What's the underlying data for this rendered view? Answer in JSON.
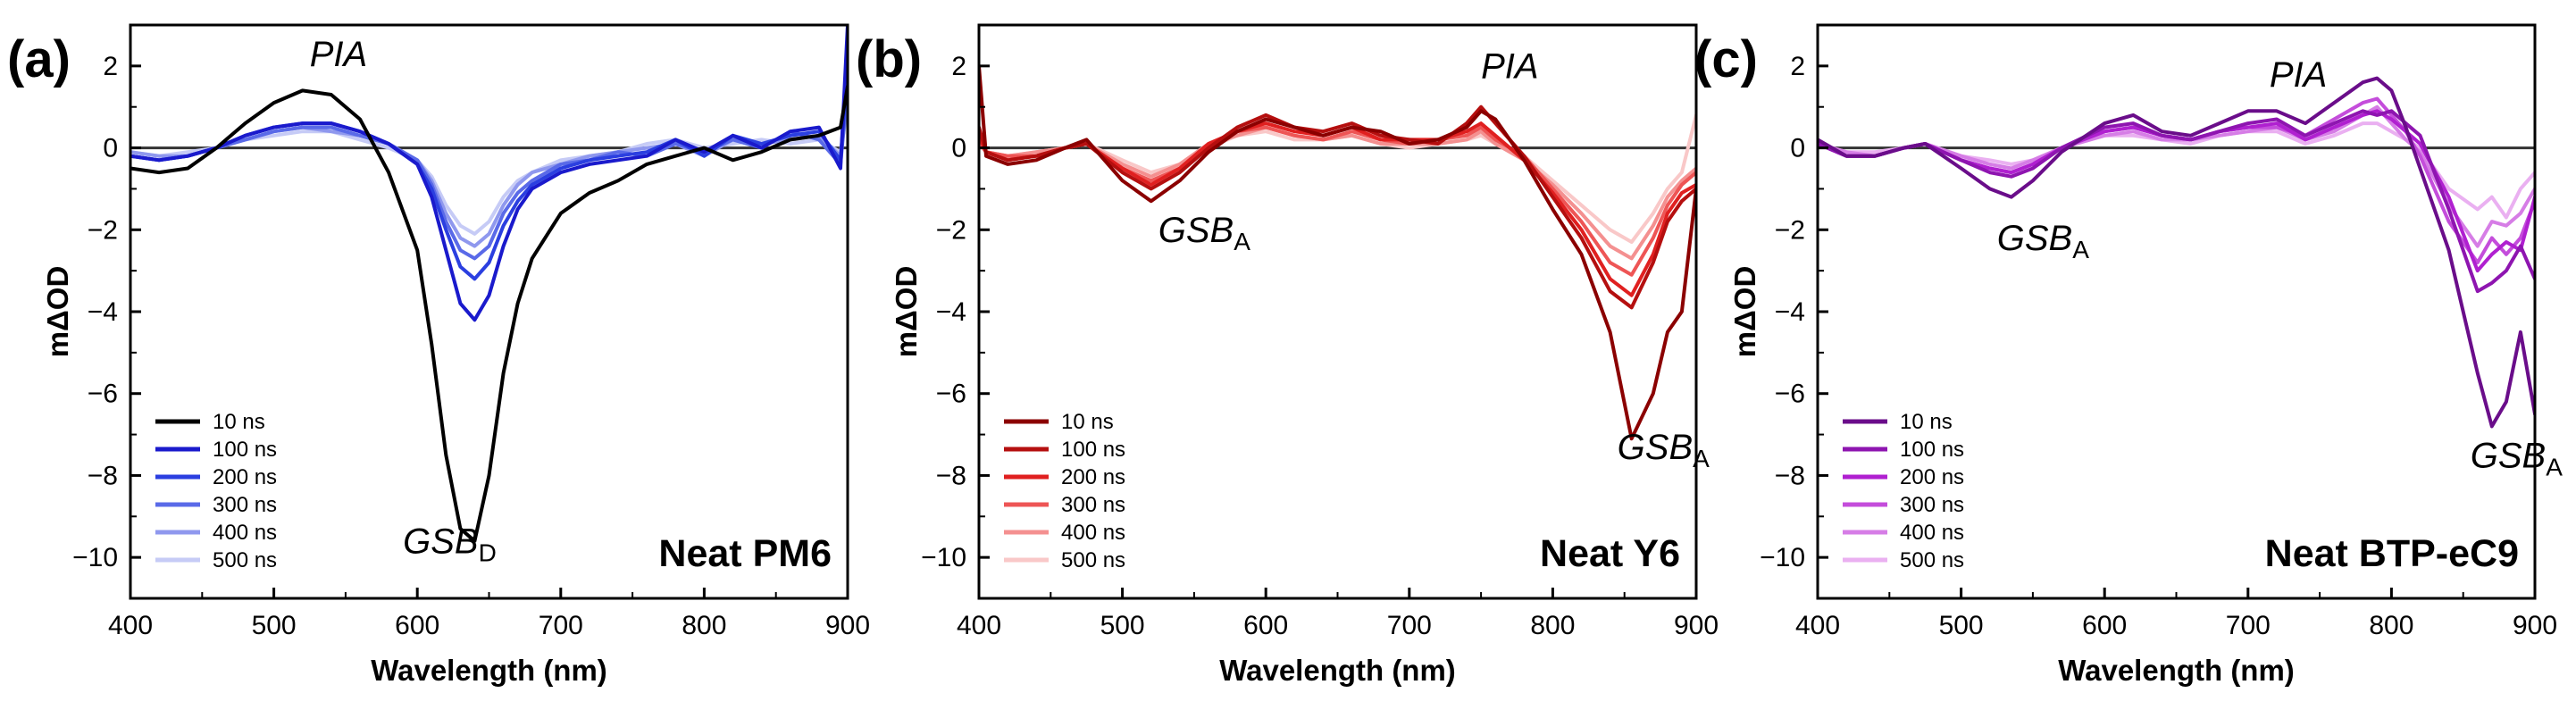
{
  "figure": {
    "background": "#ffffff"
  },
  "chart_data": [
    {
      "type": "line",
      "panel_label": "(a)",
      "title": "Neat PM6",
      "xlabel": "Wavelength (nm)",
      "ylabel": "mΔOD",
      "xlim": [
        400,
        900
      ],
      "ylim": [
        -11,
        3
      ],
      "xticks": [
        400,
        500,
        600,
        700,
        800,
        900
      ],
      "yticks": [
        2,
        0,
        -2,
        -4,
        -6,
        -8,
        -10
      ],
      "grid": false,
      "legend_position": "lower-left",
      "annotations": [
        {
          "base": "PIA",
          "sub": "",
          "x": 525,
          "y": 2.0
        },
        {
          "base": "GSB",
          "sub": "D",
          "x": 590,
          "y": -9.9
        }
      ],
      "x": [
        400,
        420,
        440,
        460,
        480,
        500,
        520,
        540,
        560,
        580,
        600,
        610,
        620,
        630,
        640,
        650,
        660,
        670,
        680,
        700,
        720,
        740,
        760,
        780,
        800,
        820,
        840,
        860,
        880,
        895,
        900
      ],
      "series": [
        {
          "name": "10 ns",
          "color": "#000000",
          "values": [
            -0.5,
            -0.6,
            -0.5,
            0.0,
            0.6,
            1.1,
            1.4,
            1.3,
            0.7,
            -0.6,
            -2.5,
            -4.8,
            -7.5,
            -9.3,
            -9.6,
            -8.0,
            -5.5,
            -3.8,
            -2.7,
            -1.6,
            -1.1,
            -0.8,
            -0.4,
            -0.2,
            0.0,
            -0.3,
            -0.1,
            0.2,
            0.3,
            0.5,
            1.5
          ]
        },
        {
          "name": "100 ns",
          "color": "#1a1acc",
          "values": [
            -0.2,
            -0.3,
            -0.2,
            0.0,
            0.3,
            0.5,
            0.6,
            0.6,
            0.4,
            0.1,
            -0.4,
            -1.2,
            -2.5,
            -3.8,
            -4.2,
            -3.6,
            -2.4,
            -1.5,
            -1.0,
            -0.6,
            -0.4,
            -0.3,
            -0.2,
            0.2,
            -0.1,
            0.3,
            0.0,
            0.4,
            0.5,
            -0.5,
            3.0
          ]
        },
        {
          "name": "200 ns",
          "color": "#2b3fe0",
          "values": [
            -0.2,
            -0.3,
            -0.2,
            0.0,
            0.3,
            0.5,
            0.6,
            0.6,
            0.4,
            0.1,
            -0.4,
            -1.0,
            -2.0,
            -2.9,
            -3.2,
            -2.8,
            -1.9,
            -1.3,
            -0.9,
            -0.5,
            -0.3,
            -0.2,
            -0.1,
            0.2,
            -0.2,
            0.3,
            0.1,
            0.3,
            0.4,
            -0.3,
            2.0
          ]
        },
        {
          "name": "300 ns",
          "color": "#5a6ae8",
          "values": [
            -0.2,
            -0.3,
            -0.2,
            0.0,
            0.2,
            0.4,
            0.5,
            0.5,
            0.3,
            0.1,
            -0.3,
            -0.9,
            -1.8,
            -2.5,
            -2.7,
            -2.4,
            -1.6,
            -1.1,
            -0.8,
            -0.4,
            -0.3,
            -0.1,
            -0.2,
            0.1,
            -0.1,
            0.2,
            0.0,
            0.4,
            0.2,
            -0.4,
            1.5
          ]
        },
        {
          "name": "400 ns",
          "color": "#8f98ee",
          "values": [
            -0.1,
            -0.2,
            -0.2,
            0.0,
            0.2,
            0.4,
            0.5,
            0.4,
            0.3,
            0.1,
            -0.3,
            -0.8,
            -1.6,
            -2.2,
            -2.4,
            -2.1,
            -1.4,
            -0.9,
            -0.6,
            -0.4,
            -0.2,
            -0.1,
            0.0,
            0.1,
            -0.2,
            0.2,
            0.1,
            0.2,
            0.3,
            -0.2,
            1.2
          ]
        },
        {
          "name": "500 ns",
          "color": "#c6cbf6",
          "values": [
            -0.1,
            -0.2,
            -0.1,
            0.0,
            0.2,
            0.3,
            0.4,
            0.4,
            0.2,
            0.0,
            -0.3,
            -0.7,
            -1.4,
            -1.9,
            -2.1,
            -1.8,
            -1.2,
            -0.8,
            -0.6,
            -0.3,
            -0.2,
            -0.1,
            0.1,
            0.2,
            0.0,
            0.1,
            0.2,
            0.1,
            0.2,
            -0.1,
            1.0
          ]
        }
      ]
    },
    {
      "type": "line",
      "panel_label": "(b)",
      "title": "Neat Y6",
      "xlabel": "Wavelength (nm)",
      "ylabel": "mΔOD",
      "xlim": [
        400,
        900
      ],
      "ylim": [
        -11,
        3
      ],
      "xticks": [
        400,
        500,
        600,
        700,
        800,
        900
      ],
      "yticks": [
        2,
        0,
        -2,
        -4,
        -6,
        -8,
        -10
      ],
      "grid": false,
      "legend_position": "lower-left",
      "annotations": [
        {
          "base": "PIA",
          "sub": "",
          "x": 750,
          "y": 1.7
        },
        {
          "base": "GSB",
          "sub": "A",
          "x": 525,
          "y": -2.3
        },
        {
          "base": "GSB",
          "sub": "A",
          "x": 845,
          "y": -7.6
        }
      ],
      "x": [
        400,
        405,
        420,
        440,
        460,
        475,
        500,
        520,
        540,
        560,
        580,
        600,
        620,
        640,
        660,
        680,
        700,
        720,
        740,
        750,
        760,
        780,
        800,
        820,
        840,
        855,
        870,
        880,
        890,
        900
      ],
      "series": [
        {
          "name": "10 ns",
          "color": "#8b0000",
          "values": [
            2.0,
            -0.2,
            -0.4,
            -0.3,
            0.0,
            0.2,
            -0.8,
            -1.3,
            -0.8,
            -0.1,
            0.4,
            0.7,
            0.5,
            0.3,
            0.5,
            0.4,
            0.1,
            0.2,
            0.5,
            0.9,
            0.7,
            -0.3,
            -1.5,
            -2.6,
            -4.5,
            -7.1,
            -6.0,
            -4.5,
            -4.0,
            -1.0
          ]
        },
        {
          "name": "100 ns",
          "color": "#b50f0f",
          "values": [
            0.5,
            -0.1,
            -0.3,
            -0.2,
            0.0,
            0.1,
            -0.6,
            -1.0,
            -0.6,
            0.0,
            0.5,
            0.8,
            0.5,
            0.4,
            0.6,
            0.3,
            0.2,
            0.1,
            0.6,
            1.0,
            0.6,
            -0.2,
            -1.2,
            -2.2,
            -3.5,
            -3.9,
            -2.8,
            -1.8,
            -1.3,
            -1.0
          ]
        },
        {
          "name": "200 ns",
          "color": "#e02020",
          "values": [
            0.3,
            -0.1,
            -0.3,
            -0.2,
            0.0,
            0.1,
            -0.5,
            -0.9,
            -0.5,
            0.1,
            0.4,
            0.6,
            0.4,
            0.3,
            0.5,
            0.2,
            0.2,
            0.2,
            0.4,
            0.6,
            0.3,
            -0.3,
            -1.1,
            -2.0,
            -3.2,
            -3.6,
            -2.6,
            -1.6,
            -1.1,
            -0.9
          ]
        },
        {
          "name": "300 ns",
          "color": "#ee5555",
          "values": [
            0.2,
            -0.1,
            -0.2,
            -0.2,
            0.0,
            0.1,
            -0.5,
            -0.8,
            -0.5,
            0.1,
            0.4,
            0.5,
            0.3,
            0.2,
            0.4,
            0.2,
            0.1,
            0.2,
            0.3,
            0.5,
            0.2,
            -0.2,
            -1.0,
            -1.8,
            -2.8,
            -3.1,
            -2.2,
            -1.4,
            -0.9,
            -0.6
          ]
        },
        {
          "name": "400 ns",
          "color": "#f49090",
          "values": [
            0.1,
            -0.1,
            -0.2,
            -0.1,
            0.0,
            0.1,
            -0.4,
            -0.7,
            -0.4,
            0.1,
            0.3,
            0.5,
            0.3,
            0.2,
            0.3,
            0.1,
            0.1,
            0.1,
            0.2,
            0.4,
            0.1,
            -0.3,
            -0.9,
            -1.6,
            -2.4,
            -2.7,
            -1.9,
            -1.2,
            -0.8,
            -0.5
          ]
        },
        {
          "name": "500 ns",
          "color": "#f9c8c8",
          "values": [
            0.1,
            -0.1,
            -0.2,
            -0.1,
            0.0,
            0.1,
            -0.3,
            -0.6,
            -0.4,
            0.0,
            0.3,
            0.4,
            0.2,
            0.2,
            0.3,
            0.1,
            0.0,
            0.1,
            0.2,
            0.3,
            0.1,
            -0.2,
            -0.8,
            -1.4,
            -2.0,
            -2.3,
            -1.6,
            -1.0,
            -0.6,
            0.8
          ]
        }
      ]
    },
    {
      "type": "line",
      "panel_label": "(c)",
      "title": "Neat BTP-eC9",
      "xlabel": "Wavelength (nm)",
      "ylabel": "mΔOD",
      "xlim": [
        400,
        900
      ],
      "ylim": [
        -11,
        3
      ],
      "xticks": [
        400,
        500,
        600,
        700,
        800,
        900
      ],
      "yticks": [
        2,
        0,
        -2,
        -4,
        -6,
        -8,
        -10
      ],
      "grid": false,
      "legend_position": "lower-left",
      "annotations": [
        {
          "base": "PIA",
          "sub": "",
          "x": 715,
          "y": 1.5
        },
        {
          "base": "GSB",
          "sub": "A",
          "x": 525,
          "y": -2.5
        },
        {
          "base": "GSB",
          "sub": "A",
          "x": 855,
          "y": -7.8
        }
      ],
      "x": [
        400,
        420,
        440,
        460,
        475,
        500,
        520,
        535,
        550,
        570,
        600,
        620,
        640,
        660,
        680,
        700,
        720,
        740,
        760,
        780,
        790,
        800,
        810,
        820,
        840,
        860,
        870,
        880,
        890,
        900
      ],
      "series": [
        {
          "name": "10 ns",
          "color": "#6a0d8a",
          "values": [
            0.2,
            -0.2,
            -0.2,
            0.0,
            0.1,
            -0.5,
            -1.0,
            -1.2,
            -0.8,
            -0.1,
            0.6,
            0.8,
            0.4,
            0.3,
            0.6,
            0.9,
            0.9,
            0.6,
            1.1,
            1.6,
            1.7,
            1.4,
            0.5,
            -0.5,
            -2.5,
            -5.5,
            -6.8,
            -6.2,
            -4.5,
            -6.5
          ]
        },
        {
          "name": "100 ns",
          "color": "#8e15b0",
          "values": [
            0.1,
            -0.2,
            -0.2,
            0.0,
            0.1,
            -0.3,
            -0.6,
            -0.7,
            -0.5,
            0.0,
            0.5,
            0.6,
            0.3,
            0.2,
            0.4,
            0.6,
            0.7,
            0.3,
            0.6,
            0.9,
            0.8,
            0.9,
            0.6,
            0.3,
            -1.5,
            -3.5,
            -3.3,
            -3.0,
            -2.4,
            -3.2
          ]
        },
        {
          "name": "200 ns",
          "color": "#b020d0",
          "values": [
            0.1,
            -0.2,
            -0.2,
            0.0,
            0.1,
            -0.3,
            -0.5,
            -0.6,
            -0.4,
            0.0,
            0.4,
            0.5,
            0.3,
            0.2,
            0.4,
            0.5,
            0.6,
            0.2,
            0.5,
            0.8,
            0.9,
            0.7,
            0.4,
            0.1,
            -1.2,
            -3.0,
            -2.6,
            -2.3,
            -2.5,
            -1.2
          ]
        },
        {
          "name": "300 ns",
          "color": "#c44ddb",
          "values": [
            0.1,
            -0.2,
            -0.2,
            0.0,
            0.1,
            -0.3,
            -0.5,
            -0.6,
            -0.4,
            0.0,
            0.4,
            0.5,
            0.3,
            0.2,
            0.4,
            0.5,
            0.5,
            0.3,
            0.7,
            1.1,
            1.2,
            0.8,
            0.4,
            -0.2,
            -1.8,
            -2.8,
            -2.2,
            -2.6,
            -2.2,
            -1.3
          ]
        },
        {
          "name": "400 ns",
          "color": "#d67de6",
          "values": [
            0.1,
            -0.1,
            -0.2,
            0.0,
            0.1,
            -0.2,
            -0.4,
            -0.5,
            -0.3,
            0.0,
            0.3,
            0.4,
            0.2,
            0.2,
            0.3,
            0.4,
            0.5,
            0.2,
            0.4,
            0.8,
            1.0,
            0.6,
            0.2,
            -0.1,
            -1.4,
            -2.4,
            -1.8,
            -1.9,
            -1.6,
            -1.0
          ]
        },
        {
          "name": "500 ns",
          "color": "#eab0f1",
          "values": [
            0.1,
            -0.1,
            -0.1,
            0.0,
            0.1,
            -0.2,
            -0.3,
            -0.4,
            -0.3,
            0.0,
            0.3,
            0.3,
            0.2,
            0.1,
            0.3,
            0.4,
            0.4,
            0.1,
            0.3,
            0.6,
            0.6,
            0.4,
            0.2,
            0.0,
            -1.0,
            -1.5,
            -1.2,
            -1.7,
            -1.0,
            -0.6
          ]
        }
      ]
    }
  ]
}
